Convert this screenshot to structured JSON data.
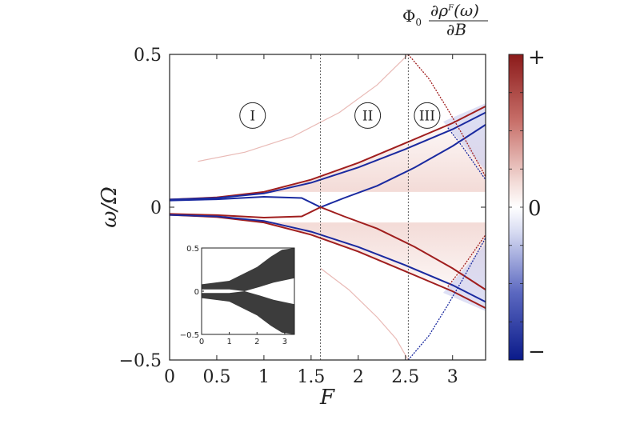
{
  "chart_data": {
    "type": "heatmap",
    "xlabel": "F",
    "ylabel": "ω/Ω",
    "xlim": [
      0,
      3.35
    ],
    "ylim": [
      -0.5,
      0.5
    ],
    "x_ticks": [
      {
        "value": 0,
        "label": "0"
      },
      {
        "value": 0.5,
        "label": "0.5"
      },
      {
        "value": 1,
        "label": "1"
      },
      {
        "value": 1.5,
        "label": "1.5"
      },
      {
        "value": 2,
        "label": "2"
      },
      {
        "value": 2.5,
        "label": "2.5"
      },
      {
        "value": 3,
        "label": "3"
      }
    ],
    "y_ticks": [
      {
        "value": 0.5,
        "label": "0.5"
      },
      {
        "value": 0,
        "label": "0"
      },
      {
        "value": -0.5,
        "label": "−0.5"
      }
    ],
    "vertical_lines": [
      1.6,
      2.53
    ],
    "regions": [
      {
        "label": "I",
        "x": 0.88,
        "y": 0.3
      },
      {
        "label": "II",
        "x": 2.1,
        "y": 0.3
      },
      {
        "label": "III",
        "x": 2.73,
        "y": 0.3
      }
    ],
    "series": [
      {
        "name": "upper-red-outer",
        "sign": "+",
        "points": [
          [
            0,
            0.025
          ],
          [
            0.5,
            0.032
          ],
          [
            1,
            0.05
          ],
          [
            1.5,
            0.09
          ],
          [
            2,
            0.145
          ],
          [
            2.5,
            0.21
          ],
          [
            3,
            0.275
          ],
          [
            3.35,
            0.33
          ]
        ]
      },
      {
        "name": "upper-blue-outer",
        "sign": "-",
        "points": [
          [
            0,
            0.025
          ],
          [
            0.5,
            0.03
          ],
          [
            1,
            0.045
          ],
          [
            1.5,
            0.08
          ],
          [
            2,
            0.13
          ],
          [
            2.5,
            0.19
          ],
          [
            3,
            0.255
          ],
          [
            3.35,
            0.31
          ]
        ]
      },
      {
        "name": "upper-blue-inner",
        "sign": "-",
        "points": [
          [
            0,
            0.022
          ],
          [
            0.5,
            0.026
          ],
          [
            1,
            0.034
          ],
          [
            1.4,
            0.03
          ],
          [
            1.6,
            0.0
          ],
          [
            1.85,
            0.03
          ],
          [
            2.2,
            0.07
          ],
          [
            2.6,
            0.13
          ],
          [
            3,
            0.2
          ],
          [
            3.35,
            0.27
          ]
        ]
      },
      {
        "name": "lower-red-outer",
        "sign": "+",
        "points": [
          [
            0,
            -0.025
          ],
          [
            0.5,
            -0.032
          ],
          [
            1,
            -0.05
          ],
          [
            1.5,
            -0.09
          ],
          [
            2,
            -0.145
          ],
          [
            2.5,
            -0.21
          ],
          [
            3,
            -0.275
          ],
          [
            3.35,
            -0.33
          ]
        ]
      },
      {
        "name": "lower-red-inner",
        "sign": "+",
        "points": [
          [
            0,
            -0.022
          ],
          [
            0.5,
            -0.026
          ],
          [
            1,
            -0.034
          ],
          [
            1.4,
            -0.03
          ],
          [
            1.6,
            0.0
          ],
          [
            1.85,
            -0.03
          ],
          [
            2.2,
            -0.07
          ],
          [
            2.6,
            -0.13
          ],
          [
            3,
            -0.2
          ],
          [
            3.35,
            -0.27
          ]
        ]
      },
      {
        "name": "lower-blue-outer",
        "sign": "-",
        "points": [
          [
            0,
            -0.025
          ],
          [
            0.5,
            -0.03
          ],
          [
            1,
            -0.045
          ],
          [
            1.5,
            -0.08
          ],
          [
            2,
            -0.13
          ],
          [
            2.5,
            -0.19
          ],
          [
            3,
            -0.255
          ],
          [
            3.35,
            -0.31
          ]
        ]
      },
      {
        "name": "faint-upper-arc",
        "sign": "+",
        "points": [
          [
            0.3,
            0.15
          ],
          [
            0.8,
            0.18
          ],
          [
            1.3,
            0.23
          ],
          [
            1.8,
            0.31
          ],
          [
            2.2,
            0.4
          ],
          [
            2.53,
            0.5
          ]
        ]
      },
      {
        "name": "faint-lower-arc",
        "sign": "+",
        "points": [
          [
            1.6,
            -0.2
          ],
          [
            1.9,
            -0.27
          ],
          [
            2.2,
            -0.36
          ],
          [
            2.4,
            -0.43
          ],
          [
            2.53,
            -0.5
          ]
        ]
      },
      {
        "name": "red-diag-upper",
        "sign": "+",
        "points": [
          [
            2.53,
            0.5
          ],
          [
            2.75,
            0.42
          ],
          [
            2.95,
            0.32
          ],
          [
            3.1,
            0.24
          ],
          [
            3.35,
            0.1
          ]
        ]
      },
      {
        "name": "blue-diag-lower",
        "sign": "-",
        "points": [
          [
            2.53,
            -0.5
          ],
          [
            2.75,
            -0.42
          ],
          [
            2.95,
            -0.32
          ],
          [
            3.1,
            -0.24
          ],
          [
            3.35,
            -0.1
          ]
        ]
      },
      {
        "name": "blue-diag-upper",
        "sign": "-",
        "points": [
          [
            2.95,
            0.26
          ],
          [
            3.1,
            0.2
          ],
          [
            3.35,
            0.09
          ]
        ]
      },
      {
        "name": "red-diag-lower",
        "sign": "+",
        "points": [
          [
            2.95,
            -0.26
          ],
          [
            3.1,
            -0.2
          ],
          [
            3.35,
            -0.09
          ]
        ]
      }
    ],
    "colorbar": {
      "title": "Φ0 ∂ρF(ω)/∂B",
      "title_main": "Φ",
      "title_sub": "0",
      "title_num": "∂ρ",
      "title_sup": "F",
      "title_num_tail": "(ω)",
      "title_den": "∂B",
      "labels": [
        "+",
        "0",
        "−"
      ],
      "colors": [
        "#8b1a1a",
        "#ffffff",
        "#0a1a8a"
      ]
    },
    "inset": {
      "xlim": [
        0,
        3.35
      ],
      "ylim": [
        -0.5,
        0.5
      ],
      "x_ticks": [
        {
          "value": 0,
          "label": "0"
        },
        {
          "value": 1,
          "label": "1"
        },
        {
          "value": 2,
          "label": "2"
        },
        {
          "value": 3,
          "label": "3"
        }
      ],
      "y_ticks": [
        {
          "value": 0.5,
          "label": "0.5"
        },
        {
          "value": 0,
          "label": "0"
        },
        {
          "value": -0.5,
          "label": "−0.5"
        }
      ],
      "bands": [
        {
          "name": "upper-band",
          "upper": [
            [
              0,
              0.08
            ],
            [
              1,
              0.12
            ],
            [
              2,
              0.28
            ],
            [
              2.5,
              0.4
            ],
            [
              2.9,
              0.48
            ],
            [
              3.35,
              0.5
            ]
          ],
          "lower": [
            [
              0,
              0.02
            ],
            [
              1,
              0.02
            ],
            [
              1.55,
              0.0
            ],
            [
              2.1,
              0.05
            ],
            [
              2.6,
              0.1
            ],
            [
              3.35,
              0.15
            ]
          ]
        },
        {
          "name": "lower-band",
          "upper": [
            [
              0,
              -0.02
            ],
            [
              1,
              -0.02
            ],
            [
              1.55,
              0.0
            ],
            [
              2.1,
              -0.05
            ],
            [
              2.6,
              -0.1
            ],
            [
              3.35,
              -0.15
            ]
          ],
          "lower": [
            [
              0,
              -0.08
            ],
            [
              1,
              -0.12
            ],
            [
              2,
              -0.28
            ],
            [
              2.5,
              -0.4
            ],
            [
              2.9,
              -0.48
            ],
            [
              3.35,
              -0.5
            ]
          ]
        }
      ]
    }
  }
}
